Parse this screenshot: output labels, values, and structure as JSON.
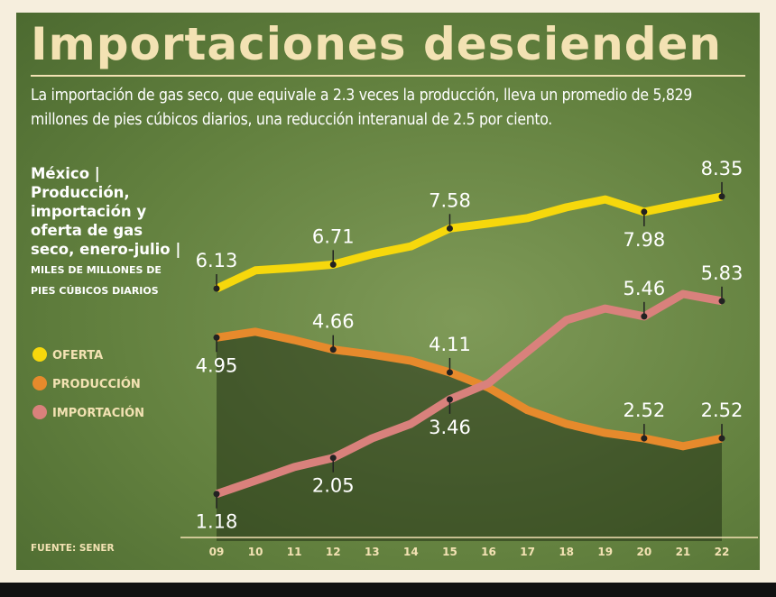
{
  "chart_data": {
    "type": "line",
    "title": "Importaciones descienden",
    "subtitle": "La importación de gas seco, que equivale a 2.3 veces la producción, lleva un promedio de 5,829 millones de pies cúbicos diarios, una reducción interanual de 2.5 por ciento.",
    "legend_title": "México | Producción, importación y oferta de gas seco, enero-julio |",
    "unit": "MILES DE MILLONES DE PIES CÚBICOS DIARIOS",
    "source": "FUENTE: SENER",
    "categories": [
      "09",
      "10",
      "11",
      "12",
      "13",
      "14",
      "15",
      "16",
      "17",
      "18",
      "19",
      "20",
      "21",
      "22"
    ],
    "series": [
      {
        "name": "OFERTA",
        "color": "#f6d80c",
        "values": [
          6.13,
          6.57,
          6.63,
          6.71,
          6.96,
          7.15,
          7.58,
          7.7,
          7.83,
          8.09,
          8.28,
          7.98,
          8.17,
          8.35
        ],
        "value_labels": [
          "6.13",
          null,
          null,
          "6.71",
          null,
          null,
          "7.58",
          null,
          null,
          null,
          null,
          "7.98",
          null,
          "8.35"
        ]
      },
      {
        "name": "PRODUCCIÓN",
        "color": "#e68a2c",
        "values": [
          4.95,
          5.09,
          4.89,
          4.66,
          4.54,
          4.39,
          4.11,
          3.74,
          3.2,
          2.87,
          2.65,
          2.52,
          2.33,
          2.52
        ],
        "value_labels": [
          "4.95",
          null,
          null,
          "4.66",
          null,
          null,
          "4.11",
          null,
          null,
          null,
          null,
          "2.52",
          null,
          "2.52"
        ]
      },
      {
        "name": "IMPORTACIÓN",
        "color": "#d9817c",
        "values": [
          1.18,
          1.5,
          1.83,
          2.05,
          2.52,
          2.87,
          3.46,
          3.85,
          4.61,
          5.37,
          5.65,
          5.46,
          6.0,
          5.83
        ],
        "value_labels": [
          "1.18",
          null,
          null,
          "2.05",
          null,
          null,
          "3.46",
          null,
          null,
          null,
          null,
          "5.46",
          null,
          "5.83"
        ]
      }
    ]
  }
}
